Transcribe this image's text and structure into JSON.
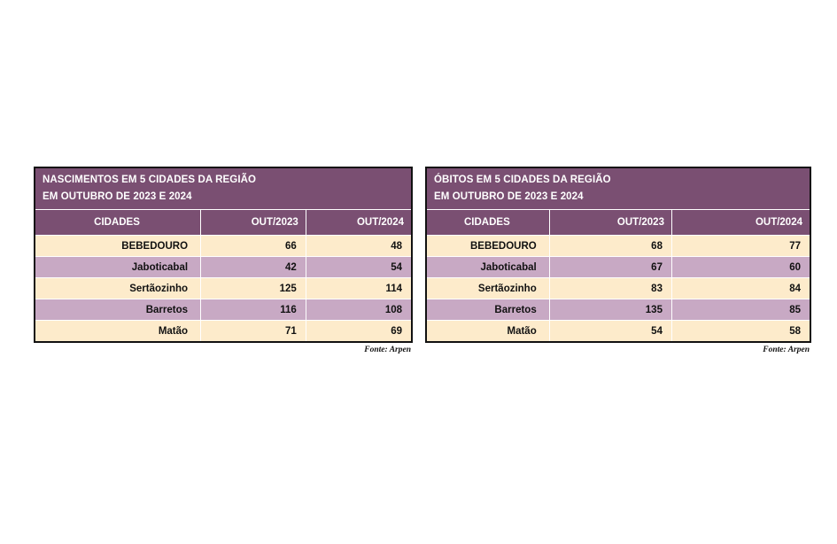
{
  "tables": [
    {
      "title_line1": "NASCIMENTOS EM 5 CIDADES DA REGIÃO",
      "title_line2": "EM OUTUBRO DE 2023 E 2024",
      "headers": [
        "CIDADES",
        "OUT/2023",
        "OUT/2024"
      ],
      "rows": [
        {
          "city": "BEBEDOURO",
          "v2023": "66",
          "v2024": "48"
        },
        {
          "city": "Jaboticabal",
          "v2023": "42",
          "v2024": "54"
        },
        {
          "city": "Sertãozinho",
          "v2023": "125",
          "v2024": "114"
        },
        {
          "city": "Barretos",
          "v2023": "116",
          "v2024": "108"
        },
        {
          "city": "Matão",
          "v2023": "71",
          "v2024": "69"
        }
      ],
      "source": "Fonte: Arpen"
    },
    {
      "title_line1": "ÓBITOS EM 5 CIDADES DA REGIÃO",
      "title_line2": "EM OUTUBRO DE 2023 E 2024",
      "headers": [
        "CIDADES",
        "OUT/2023",
        "OUT/2024"
      ],
      "rows": [
        {
          "city": "BEBEDOURO",
          "v2023": "68",
          "v2024": "77"
        },
        {
          "city": "Jaboticabal",
          "v2023": "67",
          "v2024": "60"
        },
        {
          "city": "Sertãozinho",
          "v2023": "83",
          "v2024": "84"
        },
        {
          "city": "Barretos",
          "v2023": "135",
          "v2024": "85"
        },
        {
          "city": "Matão",
          "v2023": "54",
          "v2024": "58"
        }
      ],
      "source": "Fonte: Arpen"
    }
  ],
  "colors": {
    "header_bg": "#7a4f72",
    "row_light": "#fdebcb",
    "row_dark": "#c8a9c4"
  }
}
